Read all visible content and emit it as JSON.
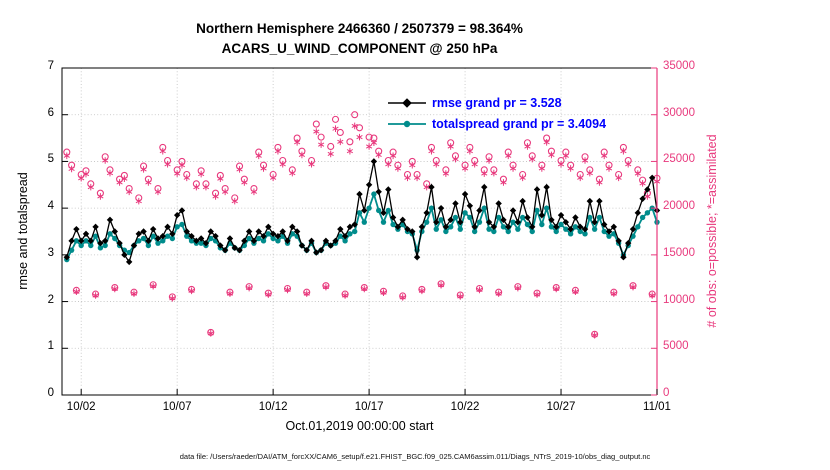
{
  "figure": {
    "title_line1": "Northern Hemisphere 2466360 / 2507379 = 98.364%",
    "title_line2": "ACARS_U_WIND_COMPONENT @ 250 hPa",
    "xlabel": "Oct.01,2019 00:00:00 start",
    "ylabel_left": "rmse and totalspread",
    "ylabel_right": "# of obs: o=possible; *=assimilated",
    "caption": "data file: /Users/raeder/DAI/ATM_forcXX/CAM6_setup/f.e21.FHIST_BGC.f09_025.CAM6assim.011/Diags_NTrS_2019-10/obs_diag_output.nc"
  },
  "legend": [
    {
      "label": "rmse grand pr = 3.528",
      "color": "#000000",
      "marker": "diamond"
    },
    {
      "label": "totalspread grand pr = 3.4094",
      "color": "#008c8c",
      "marker": "circle"
    }
  ],
  "colors": {
    "rmse": "#000000",
    "totalspread": "#008c8c",
    "obs_pink": "#e8397d",
    "legend_text": "#0000ff",
    "grid": "rgba(0,0,0,0.25)"
  },
  "chart_data": {
    "type": "line",
    "title": "Northern Hemisphere 2466360 / 2507379 = 98.364%",
    "subtitle": "ACARS_U_WIND_COMPONENT @ 250 hPa",
    "xlabel": "Oct.01,2019 00:00:00 start",
    "ylabel_left": "rmse and totalspread",
    "ylabel_right": "# of obs: o=possible; *=assimilated",
    "grid": true,
    "legend_position": "inside-top-center",
    "x_range": [
      0,
      31
    ],
    "x_start": 0.25,
    "x_step": 0.25,
    "x_ticks": {
      "positions": [
        1,
        6,
        11,
        16,
        21,
        26,
        31
      ],
      "labels": [
        "10/02",
        "10/07",
        "10/12",
        "10/17",
        "10/22",
        "10/27",
        "11/01"
      ]
    },
    "left_axis": {
      "range": [
        0,
        7
      ],
      "ticks": [
        0,
        1,
        2,
        3,
        4,
        5,
        6,
        7
      ]
    },
    "right_axis": {
      "range": [
        0,
        35000
      ],
      "ticks": [
        0,
        5000,
        10000,
        15000,
        20000,
        25000,
        30000,
        35000
      ]
    },
    "series": [
      {
        "name": "rmse grand pr = 3.528",
        "axis": "left",
        "color": "#000000",
        "marker": "diamond",
        "line": true,
        "line_width": 1.3,
        "values": [
          2.95,
          3.3,
          3.55,
          3.3,
          3.45,
          3.3,
          3.6,
          3.25,
          3.3,
          3.75,
          3.5,
          3.25,
          3.0,
          2.85,
          3.2,
          3.45,
          3.5,
          3.3,
          3.55,
          3.35,
          3.4,
          3.6,
          3.45,
          3.85,
          3.95,
          3.5,
          3.4,
          3.3,
          3.35,
          3.25,
          3.5,
          3.4,
          3.2,
          3.1,
          3.35,
          3.15,
          3.1,
          3.3,
          3.5,
          3.3,
          3.5,
          3.4,
          3.6,
          3.45,
          3.4,
          3.5,
          3.3,
          3.6,
          3.5,
          3.2,
          3.1,
          3.3,
          3.05,
          3.1,
          3.3,
          3.2,
          3.3,
          3.55,
          3.4,
          3.6,
          3.65,
          4.3,
          3.95,
          4.5,
          5.0,
          4.35,
          3.9,
          4.4,
          3.8,
          3.6,
          3.75,
          3.55,
          3.5,
          2.95,
          3.6,
          3.9,
          4.45,
          3.7,
          4.0,
          3.6,
          3.75,
          4.1,
          3.7,
          4.3,
          4.05,
          3.6,
          3.95,
          4.45,
          3.7,
          3.6,
          4.1,
          3.75,
          3.6,
          3.95,
          3.7,
          4.15,
          3.8,
          3.6,
          4.4,
          3.85,
          4.45,
          3.75,
          3.6,
          3.85,
          3.7,
          3.55,
          3.8,
          3.6,
          3.55,
          4.15,
          3.7,
          4.15,
          3.65,
          3.5,
          3.6,
          3.3,
          2.95,
          3.25,
          3.55,
          3.9,
          4.2,
          4.4,
          4.65,
          3.95
        ]
      },
      {
        "name": "totalspread grand pr = 3.4094",
        "axis": "left",
        "color": "#008c8c",
        "marker": "circle",
        "line": true,
        "line_width": 1.8,
        "values": [
          2.9,
          3.1,
          3.3,
          3.2,
          3.3,
          3.2,
          3.4,
          3.15,
          3.2,
          3.45,
          3.35,
          3.2,
          3.1,
          3.05,
          3.2,
          3.3,
          3.35,
          3.2,
          3.4,
          3.25,
          3.3,
          3.4,
          3.35,
          3.6,
          3.65,
          3.4,
          3.3,
          3.25,
          3.25,
          3.2,
          3.35,
          3.3,
          3.15,
          3.1,
          3.25,
          3.15,
          3.1,
          3.2,
          3.35,
          3.25,
          3.35,
          3.3,
          3.45,
          3.35,
          3.3,
          3.4,
          3.25,
          3.45,
          3.4,
          3.2,
          3.1,
          3.25,
          3.05,
          3.1,
          3.25,
          3.2,
          3.25,
          3.4,
          3.3,
          3.45,
          3.5,
          3.9,
          3.7,
          4.0,
          4.3,
          3.95,
          3.7,
          3.95,
          3.65,
          3.55,
          3.65,
          3.5,
          3.45,
          3.1,
          3.5,
          3.7,
          4.0,
          3.55,
          3.75,
          3.5,
          3.6,
          3.8,
          3.55,
          3.9,
          3.8,
          3.5,
          3.7,
          4.0,
          3.55,
          3.5,
          3.8,
          3.6,
          3.5,
          3.7,
          3.55,
          3.8,
          3.65,
          3.5,
          3.95,
          3.65,
          4.0,
          3.6,
          3.5,
          3.65,
          3.55,
          3.45,
          3.6,
          3.5,
          3.45,
          3.8,
          3.55,
          3.8,
          3.5,
          3.4,
          3.45,
          3.25,
          3.0,
          3.2,
          3.4,
          3.6,
          3.8,
          3.9,
          4.0,
          3.7
        ]
      },
      {
        "name": "# of obs possible",
        "axis": "right",
        "color": "#e8397d",
        "marker": "open-circle",
        "line": false,
        "values": [
          26000,
          24600,
          11200,
          23600,
          24000,
          22600,
          10800,
          21600,
          25500,
          24100,
          11500,
          23100,
          23500,
          22100,
          11000,
          21100,
          24500,
          23100,
          11800,
          22100,
          26500,
          25100,
          10500,
          24100,
          25000,
          23600,
          11300,
          22600,
          24000,
          22600,
          6700,
          21600,
          23500,
          22100,
          11000,
          21100,
          24500,
          23100,
          11600,
          22100,
          26000,
          24600,
          10900,
          23600,
          26500,
          25100,
          11400,
          24100,
          27500,
          26100,
          11000,
          25100,
          29000,
          27600,
          11700,
          26600,
          29500,
          28100,
          10800,
          27100,
          30000,
          28600,
          11500,
          27600,
          27500,
          26100,
          11100,
          25100,
          26000,
          24600,
          10600,
          23600,
          25000,
          23600,
          11300,
          22600,
          26500,
          25100,
          11900,
          24100,
          27000,
          25600,
          10700,
          24600,
          26500,
          25100,
          11400,
          24100,
          25500,
          24100,
          11000,
          23100,
          26000,
          24600,
          11600,
          23600,
          27000,
          25600,
          10900,
          24600,
          27500,
          26100,
          11500,
          25100,
          26000,
          24600,
          11200,
          23600,
          25500,
          24100,
          6500,
          23100,
          26000,
          24600,
          11000,
          23600,
          26500,
          25100,
          11700,
          24100,
          23000,
          21600,
          10800,
          23200
        ]
      },
      {
        "name": "# of obs assimilated",
        "axis": "right",
        "color": "#e8397d",
        "marker": "asterisk",
        "line": false,
        "values": [
          25600,
          24200,
          11050,
          23200,
          23650,
          22250,
          10650,
          21250,
          25100,
          23750,
          11350,
          22750,
          23150,
          21750,
          10850,
          20750,
          24150,
          22750,
          11650,
          21750,
          26100,
          24700,
          10350,
          23700,
          24600,
          23250,
          11150,
          22250,
          23650,
          22250,
          6600,
          21250,
          23150,
          21750,
          10850,
          20750,
          24150,
          22750,
          11450,
          21750,
          25600,
          24250,
          10750,
          23250,
          26100,
          24700,
          11250,
          23750,
          27050,
          25700,
          10850,
          24700,
          28200,
          26800,
          11550,
          25800,
          28500,
          27100,
          10650,
          26100,
          28800,
          27600,
          11350,
          26600,
          27000,
          25700,
          10950,
          24700,
          25600,
          24250,
          10450,
          23250,
          24600,
          23250,
          11150,
          22250,
          26100,
          24700,
          11750,
          23700,
          26600,
          25250,
          10550,
          24250,
          26100,
          24700,
          11250,
          23700,
          25100,
          23750,
          10850,
          22750,
          25600,
          24250,
          11450,
          23250,
          26600,
          25250,
          10750,
          24250,
          27050,
          25700,
          11350,
          24700,
          25600,
          24250,
          11050,
          23250,
          25100,
          23750,
          6400,
          22750,
          25600,
          24250,
          10850,
          23250,
          26100,
          24700,
          11550,
          23700,
          22650,
          21250,
          10650,
          22850
        ]
      }
    ]
  }
}
